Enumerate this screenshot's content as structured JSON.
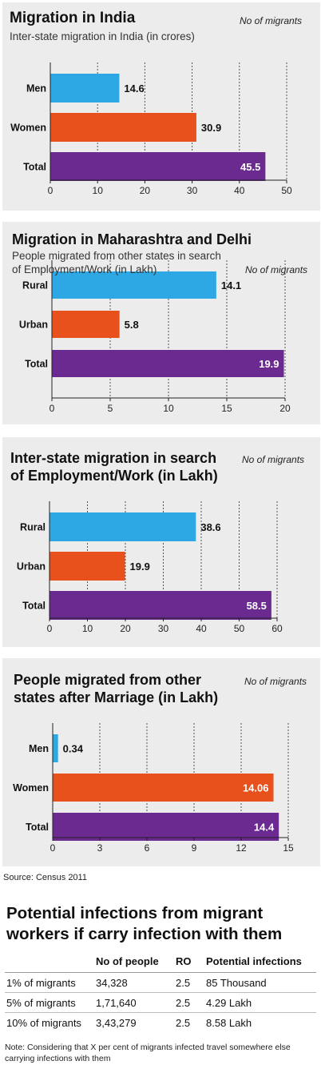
{
  "chart_data": [
    {
      "type": "bar",
      "orientation": "horizontal",
      "title": "Migration in India",
      "subtitle": "Inter-state migration in India (in crores)",
      "note": "No of migrants",
      "categories": [
        "Men",
        "Women",
        "Total"
      ],
      "values": [
        14.6,
        30.9,
        45.5
      ],
      "value_labels": [
        "14.6",
        "30.9",
        "45.5"
      ],
      "xlim": [
        0,
        50
      ],
      "ticks": [
        0,
        10,
        20,
        30,
        40,
        50
      ],
      "grid": true
    },
    {
      "type": "bar",
      "orientation": "horizontal",
      "title": "Migration in Maharashtra and Delhi",
      "subtitle": "People migrated from other states in search\nof Employment/Work (in Lakh)",
      "note": "No of migrants",
      "categories": [
        "Rural",
        "Urban",
        "Total"
      ],
      "values": [
        14.1,
        5.8,
        19.9
      ],
      "value_labels": [
        "14.1",
        "5.8",
        "19.9"
      ],
      "xlim": [
        0,
        20
      ],
      "ticks": [
        0,
        5,
        10,
        15,
        20
      ],
      "grid": true
    },
    {
      "type": "bar",
      "orientation": "horizontal",
      "title": "Inter-state migration in search\nof Employment/Work (in Lakh)",
      "subtitle": "",
      "note": "No of migrants",
      "categories": [
        "Rural",
        "Urban",
        "Total"
      ],
      "values": [
        38.6,
        19.9,
        58.5
      ],
      "value_labels": [
        "38.6",
        "19.9",
        "58.5"
      ],
      "xlim": [
        0,
        60
      ],
      "ticks": [
        0,
        10,
        20,
        30,
        40,
        50,
        60
      ],
      "grid": true
    },
    {
      "type": "bar",
      "orientation": "horizontal",
      "title": "People migrated from other\nstates after Marriage (in Lakh)",
      "subtitle": "",
      "note": "No of migrants",
      "categories": [
        "Men",
        "Women",
        "Total"
      ],
      "values": [
        0.34,
        14.06,
        14.4
      ],
      "value_labels": [
        "0.34",
        "14.06",
        "14.4"
      ],
      "xlim": [
        0,
        15
      ],
      "ticks": [
        0,
        3,
        6,
        9,
        12,
        15
      ],
      "grid": true
    },
    {
      "type": "table",
      "title": "Potential infections from migrant\nworkers if carry infection with them",
      "columns": [
        "",
        "No of people",
        "RO",
        "Potential infections"
      ],
      "rows": [
        [
          "1% of migrants",
          "34,328",
          "2.5",
          "85 Thousand"
        ],
        [
          "5% of migrants",
          "1,71,640",
          "2.5",
          "4.29 Lakh"
        ],
        [
          "10% of migrants",
          "3,43,279",
          "2.5",
          "8.58 Lakh"
        ]
      ]
    }
  ],
  "source": "Source: Census 2011",
  "footnote": "Note: Considering that X per cent of migrants infected travel somewhere else carrying infections with them",
  "colors": {
    "bar1": "#2ea8e4",
    "bar2": "#e8501c",
    "bar3": "#6b2a8f",
    "panel": "#ececec"
  }
}
